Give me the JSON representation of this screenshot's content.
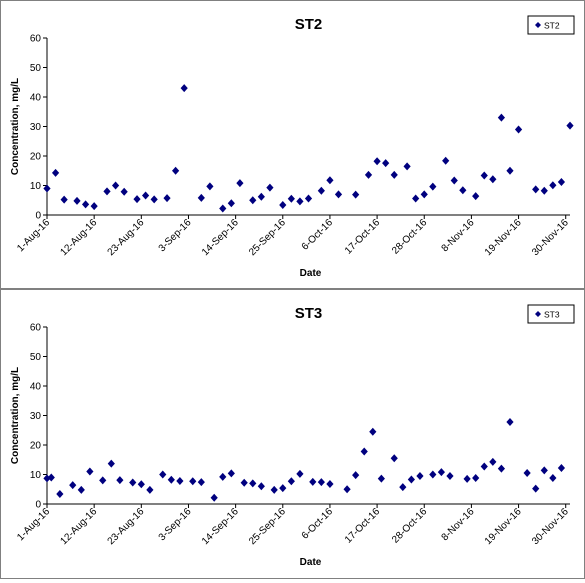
{
  "chart_data": [
    {
      "type": "scatter",
      "title": "ST2",
      "xlabel": "Date",
      "ylabel": "Concentration, mg/L",
      "ylim": [
        0,
        60
      ],
      "yticks": [
        0,
        10,
        20,
        30,
        40,
        50,
        60
      ],
      "xlim": [
        "2016-08-01",
        "2016-12-01"
      ],
      "xtick_labels": [
        "1-Aug-16",
        "12-Aug-16",
        "23-Aug-16",
        "3-Sep-16",
        "14-Sep-16",
        "25-Sep-16",
        "6-Oct-16",
        "17-Oct-16",
        "28-Oct-16",
        "8-Nov-16",
        "19-Nov-16",
        "30-Nov-16"
      ],
      "legend_position": "top-right",
      "marker_color": "#00007F",
      "series": [
        {
          "name": "ST2",
          "points": [
            [
              "2016-08-01",
              9.0
            ],
            [
              "2016-08-03",
              14.3
            ],
            [
              "2016-08-05",
              5.2
            ],
            [
              "2016-08-08",
              4.8
            ],
            [
              "2016-08-10",
              3.6
            ],
            [
              "2016-08-12",
              3.0
            ],
            [
              "2016-08-15",
              8.0
            ],
            [
              "2016-08-17",
              10.0
            ],
            [
              "2016-08-19",
              7.9
            ],
            [
              "2016-08-22",
              5.4
            ],
            [
              "2016-08-24",
              6.6
            ],
            [
              "2016-08-26",
              5.3
            ],
            [
              "2016-08-29",
              5.7
            ],
            [
              "2016-08-31",
              15.0
            ],
            [
              "2016-09-02",
              43.0
            ],
            [
              "2016-09-06",
              5.8
            ],
            [
              "2016-09-08",
              9.7
            ],
            [
              "2016-09-11",
              2.2
            ],
            [
              "2016-09-13",
              4.0
            ],
            [
              "2016-09-15",
              10.8
            ],
            [
              "2016-09-18",
              5.0
            ],
            [
              "2016-09-20",
              6.2
            ],
            [
              "2016-09-22",
              9.3
            ],
            [
              "2016-09-25",
              3.4
            ],
            [
              "2016-09-27",
              5.5
            ],
            [
              "2016-09-29",
              4.6
            ],
            [
              "2016-10-01",
              5.6
            ],
            [
              "2016-10-04",
              8.2
            ],
            [
              "2016-10-06",
              11.8
            ],
            [
              "2016-10-08",
              7.0
            ],
            [
              "2016-10-12",
              6.9
            ],
            [
              "2016-10-15",
              13.6
            ],
            [
              "2016-10-17",
              18.2
            ],
            [
              "2016-10-19",
              17.6
            ],
            [
              "2016-10-21",
              13.6
            ],
            [
              "2016-10-24",
              16.5
            ],
            [
              "2016-10-26",
              5.6
            ],
            [
              "2016-10-28",
              7.0
            ],
            [
              "2016-10-30",
              9.6
            ],
            [
              "2016-11-02",
              18.4
            ],
            [
              "2016-11-04",
              11.7
            ],
            [
              "2016-11-06",
              8.4
            ],
            [
              "2016-11-09",
              6.4
            ],
            [
              "2016-11-11",
              13.4
            ],
            [
              "2016-11-13",
              12.1
            ],
            [
              "2016-11-15",
              33.0
            ],
            [
              "2016-11-17",
              15.0
            ],
            [
              "2016-11-19",
              29.0
            ],
            [
              "2016-11-23",
              8.7
            ],
            [
              "2016-11-25",
              8.2
            ],
            [
              "2016-11-27",
              10.1
            ],
            [
              "2016-11-29",
              11.2
            ],
            [
              "2016-12-01",
              30.3
            ]
          ]
        }
      ]
    },
    {
      "type": "scatter",
      "title": "ST3",
      "xlabel": "Date",
      "ylabel": "Concentration, mg/L",
      "ylim": [
        0,
        60
      ],
      "yticks": [
        0,
        10,
        20,
        30,
        40,
        50,
        60
      ],
      "xlim": [
        "2016-08-01",
        "2016-12-01"
      ],
      "xtick_labels": [
        "1-Aug-16",
        "12-Aug-16",
        "23-Aug-16",
        "3-Sep-16",
        "14-Sep-16",
        "25-Sep-16",
        "6-Oct-16",
        "17-Oct-16",
        "28-Oct-16",
        "8-Nov-16",
        "19-Nov-16",
        "30-Nov-16"
      ],
      "legend_position": "top-right",
      "marker_color": "#00007F",
      "series": [
        {
          "name": "ST3",
          "points": [
            [
              "2016-08-01",
              8.7
            ],
            [
              "2016-08-02",
              9.0
            ],
            [
              "2016-08-04",
              3.4
            ],
            [
              "2016-08-07",
              6.4
            ],
            [
              "2016-08-09",
              4.8
            ],
            [
              "2016-08-11",
              11.0
            ],
            [
              "2016-08-14",
              8.0
            ],
            [
              "2016-08-16",
              13.7
            ],
            [
              "2016-08-18",
              8.1
            ],
            [
              "2016-08-21",
              7.3
            ],
            [
              "2016-08-23",
              6.7
            ],
            [
              "2016-08-25",
              4.8
            ],
            [
              "2016-08-28",
              10.0
            ],
            [
              "2016-08-30",
              8.2
            ],
            [
              "2016-09-01",
              7.8
            ],
            [
              "2016-09-04",
              7.7
            ],
            [
              "2016-09-06",
              7.4
            ],
            [
              "2016-09-09",
              2.1
            ],
            [
              "2016-09-11",
              9.2
            ],
            [
              "2016-09-13",
              10.4
            ],
            [
              "2016-09-16",
              7.2
            ],
            [
              "2016-09-18",
              7.0
            ],
            [
              "2016-09-20",
              6.0
            ],
            [
              "2016-09-23",
              4.8
            ],
            [
              "2016-09-25",
              5.4
            ],
            [
              "2016-09-27",
              7.7
            ],
            [
              "2016-09-29",
              10.2
            ],
            [
              "2016-10-02",
              7.5
            ],
            [
              "2016-10-04",
              7.4
            ],
            [
              "2016-10-06",
              6.8
            ],
            [
              "2016-10-10",
              5.0
            ],
            [
              "2016-10-12",
              9.8
            ],
            [
              "2016-10-14",
              17.8
            ],
            [
              "2016-10-16",
              24.5
            ],
            [
              "2016-10-18",
              8.6
            ],
            [
              "2016-10-21",
              15.5
            ],
            [
              "2016-10-23",
              5.7
            ],
            [
              "2016-10-25",
              8.3
            ],
            [
              "2016-10-27",
              9.5
            ],
            [
              "2016-10-30",
              10.0
            ],
            [
              "2016-11-01",
              10.8
            ],
            [
              "2016-11-03",
              9.5
            ],
            [
              "2016-11-07",
              8.5
            ],
            [
              "2016-11-09",
              8.8
            ],
            [
              "2016-11-11",
              12.7
            ],
            [
              "2016-11-13",
              14.3
            ],
            [
              "2016-11-15",
              12.0
            ],
            [
              "2016-11-17",
              27.8
            ],
            [
              "2016-11-21",
              10.5
            ],
            [
              "2016-11-23",
              5.2
            ],
            [
              "2016-11-25",
              11.4
            ],
            [
              "2016-11-27",
              8.8
            ],
            [
              "2016-11-29",
              12.2
            ]
          ]
        }
      ]
    }
  ]
}
